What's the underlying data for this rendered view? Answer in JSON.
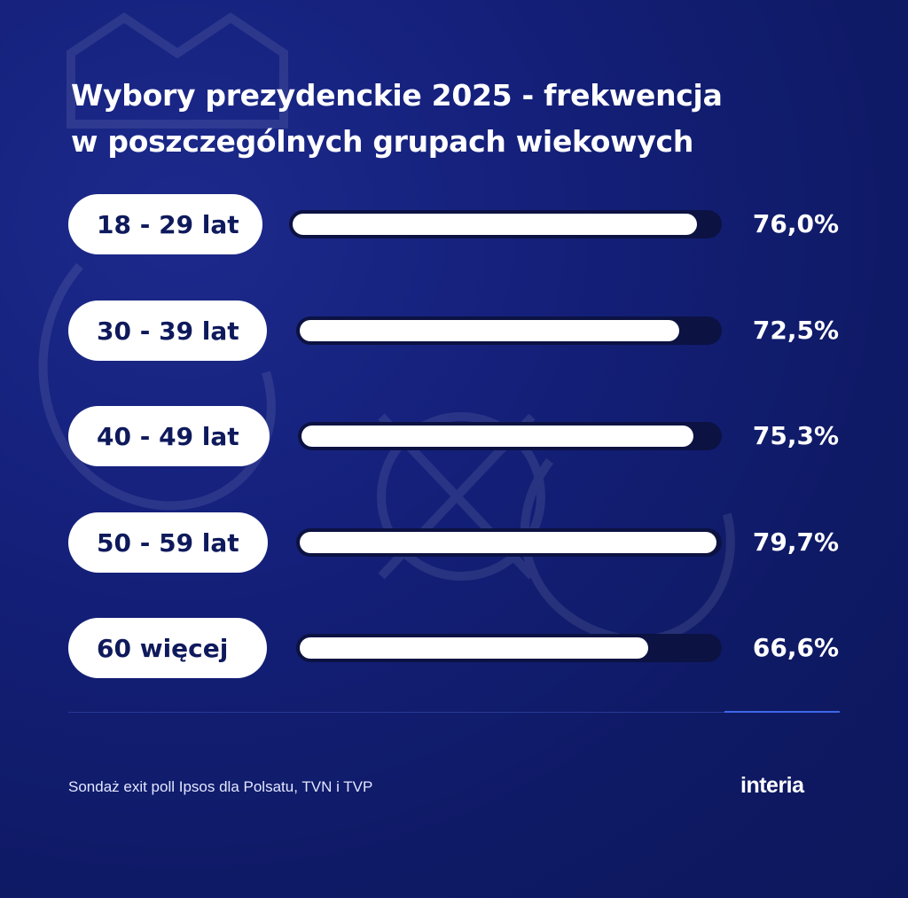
{
  "chart_data": {
    "type": "bar",
    "orientation": "horizontal",
    "title": "Wybory prezydenckie 2025 - frekwencja w poszczególnych grupach wiekowych",
    "title_lines": [
      "Wybory prezydenckie 2025 - frekwencja",
      "w poszczególnych grupach wiekowych"
    ],
    "categories": [
      "18 - 29 lat",
      "30 - 39 lat",
      "40 - 49 lat",
      "50 - 59 lat",
      "60 więcej"
    ],
    "values": [
      76.0,
      72.5,
      75.3,
      79.7,
      66.6
    ],
    "value_labels": [
      "76,0%",
      "72,5%",
      "75,3%",
      "79,7%",
      "66,6%"
    ],
    "unit": "%",
    "xlim": [
      0,
      80
    ],
    "grid": false,
    "legend": "none"
  },
  "footer": {
    "source": "Sondaż exit poll Ipsos dla Polsatu, TVN i TVP",
    "logo_text": "interia"
  },
  "colors": {
    "background": "#14207a",
    "bar_fill": "#ffffff",
    "bar_track": "#0c1242",
    "pill_text": "#0f1a5c",
    "accent_line": "#3d67e8"
  }
}
